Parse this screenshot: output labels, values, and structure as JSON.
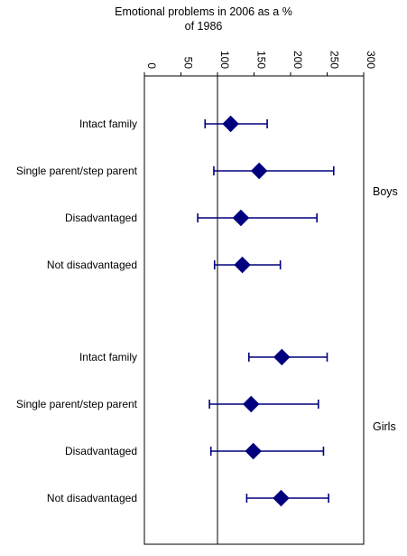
{
  "chart_data": {
    "type": "scatter",
    "title_lines": [
      "Emotional problems in 2006 as a %",
      "of 1986"
    ],
    "xlabel": "",
    "ylabel": "",
    "xlim": [
      0,
      300
    ],
    "xticks": [
      "0",
      "50",
      "100",
      "150",
      "200",
      "250",
      "300"
    ],
    "reference_line": 100,
    "groups": [
      {
        "name": "Boys",
        "rows": [
          {
            "label": "Intact family",
            "value": 118,
            "lower": 83,
            "upper": 168
          },
          {
            "label": "Single parent/step parent",
            "value": 157,
            "lower": 95,
            "upper": 259
          },
          {
            "label": "Disadvantaged",
            "value": 132,
            "lower": 73,
            "upper": 236
          },
          {
            "label": "Not disadvantaged",
            "value": 134,
            "lower": 96,
            "upper": 186
          }
        ]
      },
      {
        "name": "Girls",
        "rows": [
          {
            "label": "Intact family",
            "value": 188,
            "lower": 143,
            "upper": 250
          },
          {
            "label": "Single parent/step parent",
            "value": 146,
            "lower": 89,
            "upper": 238
          },
          {
            "label": "Disadvantaged",
            "value": 149,
            "lower": 91,
            "upper": 245
          },
          {
            "label": "Not disadvantaged",
            "value": 187,
            "lower": 140,
            "upper": 252
          }
        ]
      }
    ],
    "marker": "diamond",
    "grid": false,
    "legend": "none",
    "colors": {
      "marker": "#00007f",
      "axis": "#000000"
    }
  }
}
